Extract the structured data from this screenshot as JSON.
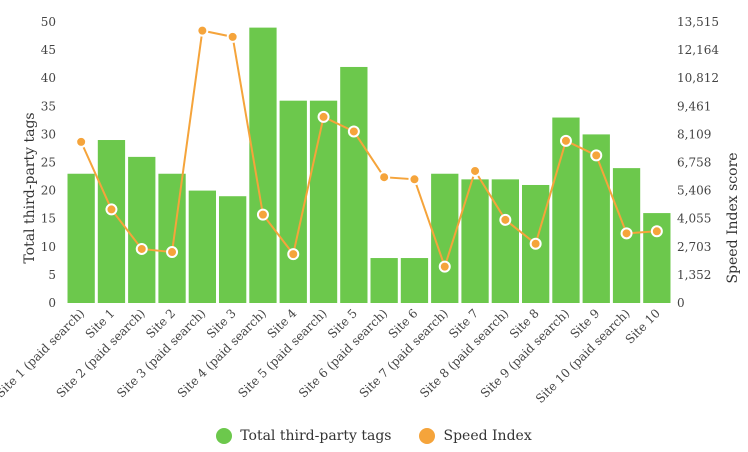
{
  "chart_data": {
    "type": "bar",
    "categories": [
      "Site 1 (paid search)",
      "Site 1",
      "Site 2 (paid search)",
      "Site 2",
      "Site 3 (paid search)",
      "Site 3",
      "Site 4 (paid search)",
      "Site 4",
      "Site 5 (paid search)",
      "Site 5",
      "Site 6 (paid search)",
      "Site 6",
      "Site 7 (paid search)",
      "Site 7",
      "Site 8 (paid search)",
      "Site 8",
      "Site 9 (paid search)",
      "Site 9",
      "Site 10 (paid search)",
      "Site 10"
    ],
    "series": [
      {
        "name": "Total third-party tags",
        "type": "bar",
        "axis": "left",
        "color": "#6cc84c",
        "values": [
          23,
          29,
          26,
          23,
          20,
          19,
          49,
          36,
          36,
          42,
          8,
          8,
          23,
          22,
          22,
          21,
          33,
          30,
          24,
          16
        ]
      },
      {
        "name": "Speed Index",
        "type": "line",
        "axis": "right",
        "color": "#f5a43b",
        "values": [
          7750,
          4500,
          2600,
          2450,
          13100,
          12800,
          4250,
          2350,
          8950,
          8250,
          6050,
          5950,
          1750,
          6350,
          4000,
          2850,
          7800,
          7100,
          3350,
          3450
        ]
      }
    ],
    "ylabel": "Total third-party tags",
    "ylabel_right": "Speed Index score",
    "ylim": [
      0,
      50
    ],
    "ylim_right": [
      0,
      13515
    ],
    "yticks": [
      "0",
      "5",
      "10",
      "15",
      "20",
      "25",
      "30",
      "35",
      "40",
      "45",
      "50"
    ],
    "yticks_right": [
      "0",
      "1,352",
      "2,703",
      "4,055",
      "5,406",
      "6,758",
      "8,109",
      "9,461",
      "10,812",
      "12,164",
      "13,515"
    ],
    "legend_position": "bottom",
    "grid": false
  }
}
